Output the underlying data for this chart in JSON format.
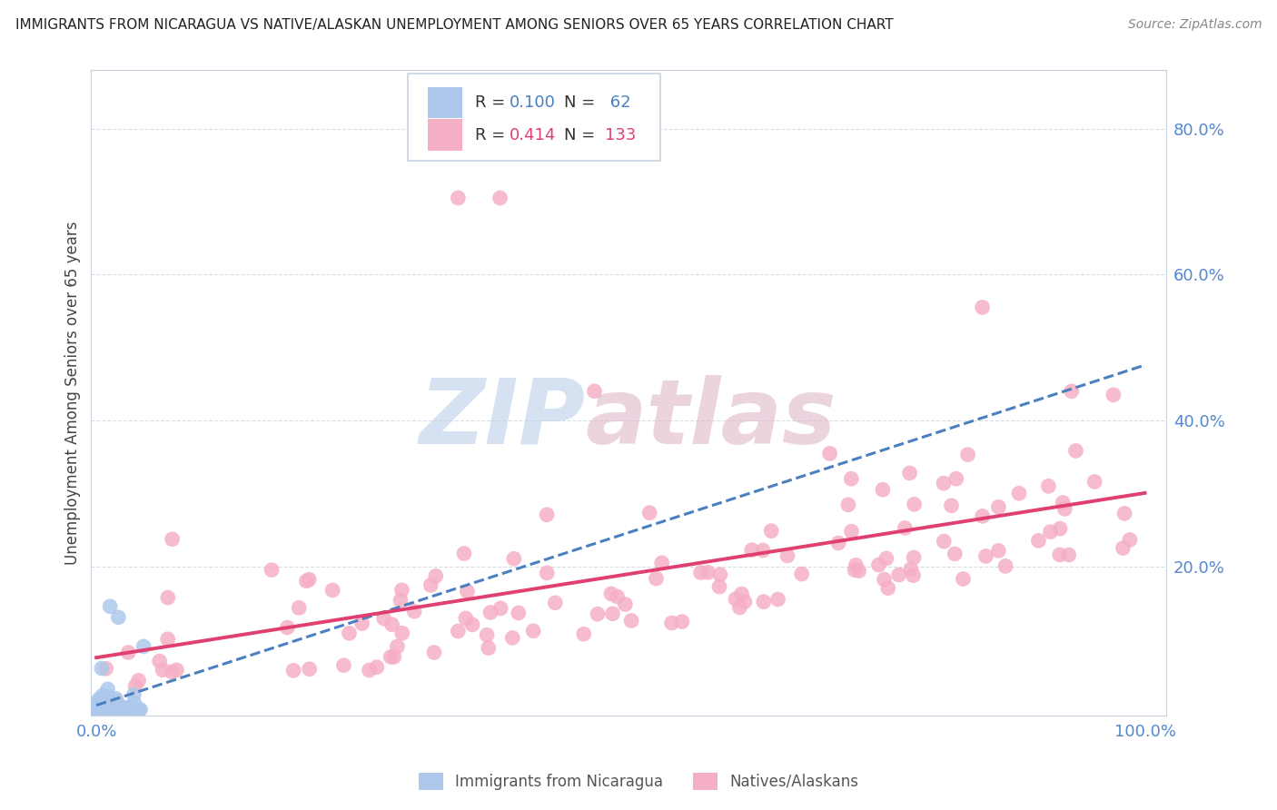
{
  "title": "IMMIGRANTS FROM NICARAGUA VS NATIVE/ALASKAN UNEMPLOYMENT AMONG SENIORS OVER 65 YEARS CORRELATION CHART",
  "source": "Source: ZipAtlas.com",
  "ylabel": "Unemployment Among Seniors over 65 years",
  "nicaragua_color": "#adc8eb",
  "native_color": "#f5afc4",
  "nicaragua_line_color": "#4a7fc0",
  "native_line_color": "#e04070",
  "background_color": "#ffffff",
  "tick_color": "#5588cc",
  "grid_color": "#d8dde8",
  "spine_color": "#c8d0dc",
  "watermark_zip_color": "#bcd0e8",
  "watermark_atlas_color": "#e0b8c8",
  "legend_box_color": "#c8d4e0",
  "title_color": "#222222",
  "source_color": "#888888",
  "ylabel_color": "#444444",
  "bottom_legend_color": "#555555",
  "nicaragua_R": 0.1,
  "nicaragua_N": 62,
  "native_R": 0.414,
  "native_N": 133,
  "ylim_max": 0.88,
  "xlim_max": 1.02
}
